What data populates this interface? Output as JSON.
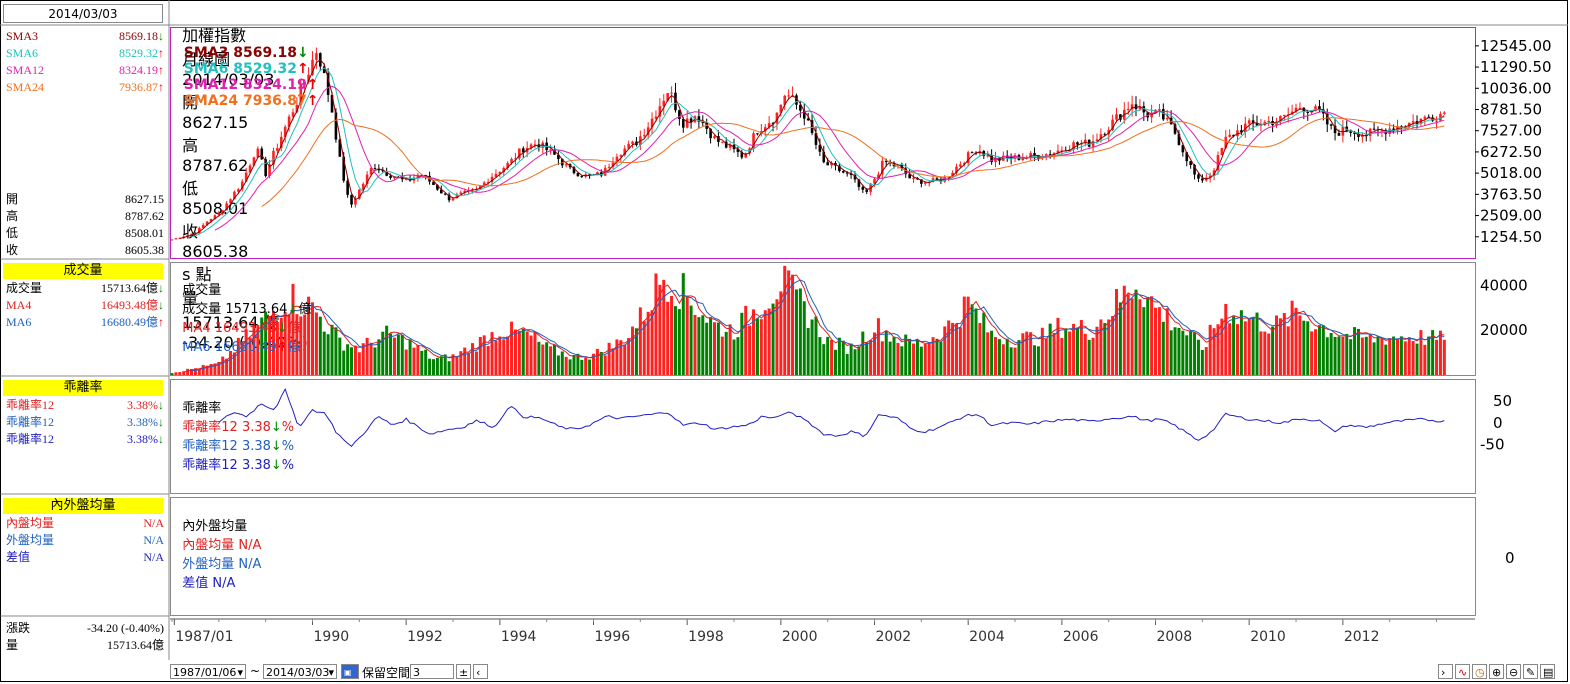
{
  "header": {
    "date_box": "2014/03/03",
    "title": "加權指數",
    "period": "月線圖",
    "date": "2014/03/03",
    "open_label": "開",
    "open": "8627.15",
    "high_label": "高",
    "high": "8787.62",
    "low_label": "低",
    "low": "8508.01",
    "close_label": "收",
    "close": "8605.38",
    "unit": "s 點",
    "vol_label": "量",
    "vol": "15713.64 億",
    "change": "-34.20 (-0.40%)"
  },
  "left": {
    "sma": [
      {
        "label": "SMA3",
        "value": "8569.18",
        "arrow": "↓",
        "color": "#8b0000"
      },
      {
        "label": "SMA6",
        "value": "8529.32",
        "arrow": "↑",
        "color": "#20c0c0"
      },
      {
        "label": "SMA12",
        "value": "8324.19",
        "arrow": "↑",
        "color": "#e020b0"
      },
      {
        "label": "SMA24",
        "value": "7936.87",
        "arrow": "↑",
        "color": "#f07020"
      }
    ],
    "ohlc": [
      {
        "label": "開",
        "value": "8627.15"
      },
      {
        "label": "高",
        "value": "8787.62"
      },
      {
        "label": "低",
        "value": "8508.01"
      },
      {
        "label": "收",
        "value": "8605.38"
      }
    ],
    "volume_title": "成交量",
    "volume": [
      {
        "label": "成交量",
        "value": "15713.64億",
        "arrow": "↓",
        "color": "#000000"
      },
      {
        "label": "MA4",
        "value": "16493.48億",
        "arrow": "↓",
        "color": "#e02020"
      },
      {
        "label": "MA6",
        "value": "16680.49億",
        "arrow": "↑",
        "color": "#2060c0"
      }
    ],
    "bias_title": "乖離率",
    "bias": [
      {
        "label": "乖離率12",
        "value": "3.38%",
        "arrow": "↓",
        "color": "#e02020"
      },
      {
        "label": "乖離率12",
        "value": "3.38%",
        "arrow": "↓",
        "color": "#2060c0"
      },
      {
        "label": "乖離率12",
        "value": "3.38%",
        "arrow": "↓",
        "color": "#2020c0"
      }
    ],
    "io_title": "內外盤均量",
    "io": [
      {
        "label": "內盤均量",
        "value": "N/A",
        "color": "#e02020"
      },
      {
        "label": "外盤均量",
        "value": "N/A",
        "color": "#2060c0"
      },
      {
        "label": "差值",
        "value": "N/A",
        "color": "#2020c0"
      }
    ],
    "change_label": "漲跌",
    "change_value": "-34.20 (-0.40%)",
    "vol_label": "量",
    "vol_value": "15713.64億"
  },
  "legends": {
    "price": [
      {
        "text": "SMA3 8569.18",
        "arrow": "↓",
        "color": "#8b0000"
      },
      {
        "text": "SMA6 8529.32",
        "arrow": "↑",
        "color": "#20c0c0"
      },
      {
        "text": "SMA12 8324.19",
        "arrow": "↑",
        "color": "#e020b0"
      },
      {
        "text": "SMA24 7936.87",
        "arrow": "↑",
        "color": "#f07020"
      }
    ],
    "volume": [
      {
        "text": "成交量",
        "arrow": "",
        "color": "#000000"
      },
      {
        "text": "成交量 15713.64",
        "arrow": "↓",
        "suffix": "億",
        "color": "#000000"
      },
      {
        "text": "MA4 16493.48",
        "arrow": "↓",
        "suffix": "億",
        "color": "#e02020"
      },
      {
        "text": "MA6 16680.49",
        "arrow": "↑",
        "suffix": "億",
        "color": "#2060c0"
      }
    ],
    "bias": [
      {
        "text": "乖離率",
        "arrow": "",
        "color": "#000000"
      },
      {
        "text": "乖離率12 3.38",
        "arrow": "↓",
        "suffix": "%",
        "color": "#e02020"
      },
      {
        "text": "乖離率12 3.38",
        "arrow": "↓",
        "suffix": "%",
        "color": "#2060c0"
      },
      {
        "text": "乖離率12 3.38",
        "arrow": "↓",
        "suffix": "%",
        "color": "#2020c0"
      }
    ],
    "io": [
      {
        "text": "內外盤均量",
        "color": "#000000"
      },
      {
        "text": "內盤均量 N/A",
        "color": "#e02020"
      },
      {
        "text": "外盤均量 N/A",
        "color": "#2060c0"
      },
      {
        "text": "差值 N/A",
        "color": "#2020c0"
      }
    ]
  },
  "controls": {
    "start": "1987/01/06",
    "tilde": "~",
    "end": "2014/03/03",
    "reserve_label": "保留空間",
    "reserve_value": "3"
  },
  "chart_data": {
    "type": "candlestick",
    "x_ticks": [
      "1987/01",
      "1990",
      "1992",
      "1994",
      "1996",
      "1998",
      "2000",
      "2002",
      "2004",
      "2006",
      "2008",
      "2010",
      "2012"
    ],
    "price_ticks": [
      12545.0,
      11290.5,
      10036.0,
      8781.5,
      7527.0,
      6272.5,
      5018.0,
      3763.5,
      2509.0,
      1254.5
    ],
    "price_range": [
      0,
      13600
    ],
    "volume_ticks": [
      40000,
      20000
    ],
    "volume_range": [
      0,
      50000
    ],
    "bias_ticks": [
      50,
      0,
      -50
    ],
    "bias_range": [
      -80,
      80
    ],
    "io_ticks": [
      0
    ],
    "series_colors": {
      "up": "#ff2020",
      "down": "#008000",
      "sma3": "#8b0000",
      "sma6": "#20c0c0",
      "sma12": "#e020b0",
      "sma24": "#f07020",
      "bias": "#2020c0"
    },
    "close_anchors": [
      [
        1987.0,
        1100
      ],
      [
        1987.5,
        1500
      ],
      [
        1987.8,
        2300
      ],
      [
        1988.0,
        2600
      ],
      [
        1988.5,
        4500
      ],
      [
        1988.8,
        6500
      ],
      [
        1989.0,
        5000
      ],
      [
        1989.3,
        7000
      ],
      [
        1989.7,
        9500
      ],
      [
        1990.1,
        12400
      ],
      [
        1990.4,
        9000
      ],
      [
        1990.6,
        5500
      ],
      [
        1990.8,
        3000
      ],
      [
        1991.0,
        4000
      ],
      [
        1991.3,
        5500
      ],
      [
        1991.6,
        5000
      ],
      [
        1992.0,
        4500
      ],
      [
        1992.3,
        5000
      ],
      [
        1992.6,
        4300
      ],
      [
        1992.9,
        3500
      ],
      [
        1993.2,
        3800
      ],
      [
        1993.5,
        4000
      ],
      [
        1993.8,
        4800
      ],
      [
        1994.2,
        5600
      ],
      [
        1994.5,
        6500
      ],
      [
        1994.8,
        6800
      ],
      [
        1995.2,
        6000
      ],
      [
        1995.5,
        5200
      ],
      [
        1995.9,
        4800
      ],
      [
        1996.2,
        5000
      ],
      [
        1996.5,
        6200
      ],
      [
        1996.9,
        6800
      ],
      [
        1997.2,
        8000
      ],
      [
        1997.6,
        10000
      ],
      [
        1997.9,
        8000
      ],
      [
        1998.2,
        8500
      ],
      [
        1998.6,
        7000
      ],
      [
        1998.9,
        6500
      ],
      [
        1999.2,
        6000
      ],
      [
        1999.5,
        7600
      ],
      [
        1999.9,
        8400
      ],
      [
        2000.1,
        9800
      ],
      [
        2000.5,
        8500
      ],
      [
        2000.9,
        5600
      ],
      [
        2001.1,
        5400
      ],
      [
        2001.5,
        4800
      ],
      [
        2001.8,
        3700
      ],
      [
        2002.2,
        5700
      ],
      [
        2002.5,
        5400
      ],
      [
        2002.8,
        4600
      ],
      [
        2003.2,
        4500
      ],
      [
        2003.5,
        4700
      ],
      [
        2003.9,
        5800
      ],
      [
        2004.2,
        6500
      ],
      [
        2004.5,
        5800
      ],
      [
        2004.9,
        5900
      ],
      [
        2005.3,
        6000
      ],
      [
        2005.8,
        6200
      ],
      [
        2006.2,
        6700
      ],
      [
        2006.6,
        6800
      ],
      [
        2007.0,
        7800
      ],
      [
        2007.5,
        9200
      ],
      [
        2007.8,
        8500
      ],
      [
        2008.1,
        8500
      ],
      [
        2008.4,
        7500
      ],
      [
        2008.7,
        5700
      ],
      [
        2008.9,
        4500
      ],
      [
        2009.2,
        5000
      ],
      [
        2009.5,
        7000
      ],
      [
        2009.9,
        7800
      ],
      [
        2010.3,
        8000
      ],
      [
        2010.7,
        8200
      ],
      [
        2011.1,
        9000
      ],
      [
        2011.5,
        8600
      ],
      [
        2011.8,
        7400
      ],
      [
        2012.1,
        7600
      ],
      [
        2012.5,
        7300
      ],
      [
        2012.9,
        7600
      ],
      [
        2013.3,
        7900
      ],
      [
        2013.7,
        8200
      ],
      [
        2014.17,
        8605
      ]
    ],
    "volume_anchors": [
      [
        1987.0,
        1000
      ],
      [
        1988.0,
        5000
      ],
      [
        1989.0,
        25000
      ],
      [
        1989.5,
        35000
      ],
      [
        1990.0,
        30000
      ],
      [
        1990.6,
        15000
      ],
      [
        1991.0,
        12000
      ],
      [
        1991.6,
        18000
      ],
      [
        1992.0,
        15000
      ],
      [
        1992.6,
        7000
      ],
      [
        1993.0,
        8000
      ],
      [
        1993.6,
        15000
      ],
      [
        1994.0,
        20000
      ],
      [
        1994.6,
        18000
      ],
      [
        1995.0,
        12000
      ],
      [
        1995.6,
        8000
      ],
      [
        1996.0,
        9000
      ],
      [
        1996.6,
        15000
      ],
      [
        1997.0,
        25000
      ],
      [
        1997.5,
        45000
      ],
      [
        1998.0,
        35000
      ],
      [
        1998.6,
        22000
      ],
      [
        1999.0,
        20000
      ],
      [
        1999.5,
        30000
      ],
      [
        2000.0,
        42000
      ],
      [
        2000.5,
        30000
      ],
      [
        2001.0,
        15000
      ],
      [
        2001.5,
        12000
      ],
      [
        2002.0,
        22000
      ],
      [
        2002.6,
        15000
      ],
      [
        2003.0,
        14000
      ],
      [
        2003.5,
        20000
      ],
      [
        2004.0,
        32000
      ],
      [
        2004.5,
        18000
      ],
      [
        2005.0,
        16000
      ],
      [
        2005.6,
        17000
      ],
      [
        2006.0,
        22000
      ],
      [
        2006.6,
        20000
      ],
      [
        2007.0,
        28000
      ],
      [
        2007.6,
        42000
      ],
      [
        2008.0,
        30000
      ],
      [
        2008.6,
        20000
      ],
      [
        2009.0,
        12000
      ],
      [
        2009.5,
        30000
      ],
      [
        2010.0,
        25000
      ],
      [
        2010.6,
        22000
      ],
      [
        2011.0,
        28000
      ],
      [
        2011.5,
        22000
      ],
      [
        2012.0,
        18000
      ],
      [
        2012.6,
        16000
      ],
      [
        2013.0,
        17000
      ],
      [
        2013.6,
        17000
      ],
      [
        2014.17,
        15713
      ]
    ],
    "bias_anchors": [
      [
        1988.0,
        0
      ],
      [
        1988.3,
        25
      ],
      [
        1988.6,
        15
      ],
      [
        1988.9,
        45
      ],
      [
        1989.2,
        30
      ],
      [
        1989.4,
        80
      ],
      [
        1989.7,
        -10
      ],
      [
        1990.0,
        30
      ],
      [
        1990.3,
        20
      ],
      [
        1990.5,
        -20
      ],
      [
        1990.8,
        -55
      ],
      [
        1991.0,
        -35
      ],
      [
        1991.4,
        15
      ],
      [
        1991.7,
        -5
      ],
      [
        1992.0,
        8
      ],
      [
        1992.5,
        -25
      ],
      [
        1992.9,
        -15
      ],
      [
        1993.2,
        -10
      ],
      [
        1993.5,
        5
      ],
      [
        1993.9,
        -10
      ],
      [
        1994.2,
        40
      ],
      [
        1994.5,
        15
      ],
      [
        1994.9,
        10
      ],
      [
        1995.3,
        -10
      ],
      [
        1995.6,
        -15
      ],
      [
        1995.9,
        -5
      ],
      [
        1996.3,
        15
      ],
      [
        1996.6,
        10
      ],
      [
        1996.9,
        15
      ],
      [
        1997.3,
        20
      ],
      [
        1997.6,
        25
      ],
      [
        1997.9,
        -5
      ],
      [
        1998.3,
        0
      ],
      [
        1998.6,
        -15
      ],
      [
        1998.9,
        -10
      ],
      [
        1999.3,
        -5
      ],
      [
        1999.6,
        15
      ],
      [
        1999.9,
        10
      ],
      [
        2000.1,
        25
      ],
      [
        2000.5,
        10
      ],
      [
        2000.9,
        -25
      ],
      [
        2001.2,
        -30
      ],
      [
        2001.5,
        -20
      ],
      [
        2001.8,
        -30
      ],
      [
        2002.1,
        20
      ],
      [
        2002.5,
        10
      ],
      [
        2002.8,
        -15
      ],
      [
        2003.1,
        -20
      ],
      [
        2003.5,
        -5
      ],
      [
        2003.9,
        15
      ],
      [
        2004.2,
        20
      ],
      [
        2004.5,
        -5
      ],
      [
        2004.9,
        0
      ],
      [
        2005.3,
        -3
      ],
      [
        2005.8,
        5
      ],
      [
        2006.2,
        8
      ],
      [
        2006.6,
        3
      ],
      [
        2007.0,
        10
      ],
      [
        2007.5,
        15
      ],
      [
        2007.8,
        5
      ],
      [
        2008.1,
        8
      ],
      [
        2008.4,
        -5
      ],
      [
        2008.7,
        -25
      ],
      [
        2008.9,
        -40
      ],
      [
        2009.2,
        -20
      ],
      [
        2009.5,
        20
      ],
      [
        2009.9,
        10
      ],
      [
        2010.3,
        5
      ],
      [
        2010.7,
        0
      ],
      [
        2011.1,
        10
      ],
      [
        2011.5,
        5
      ],
      [
        2011.8,
        -20
      ],
      [
        2012.1,
        -5
      ],
      [
        2012.5,
        -10
      ],
      [
        2012.9,
        0
      ],
      [
        2013.3,
        5
      ],
      [
        2013.7,
        8
      ],
      [
        2014.17,
        3.38
      ]
    ]
  }
}
